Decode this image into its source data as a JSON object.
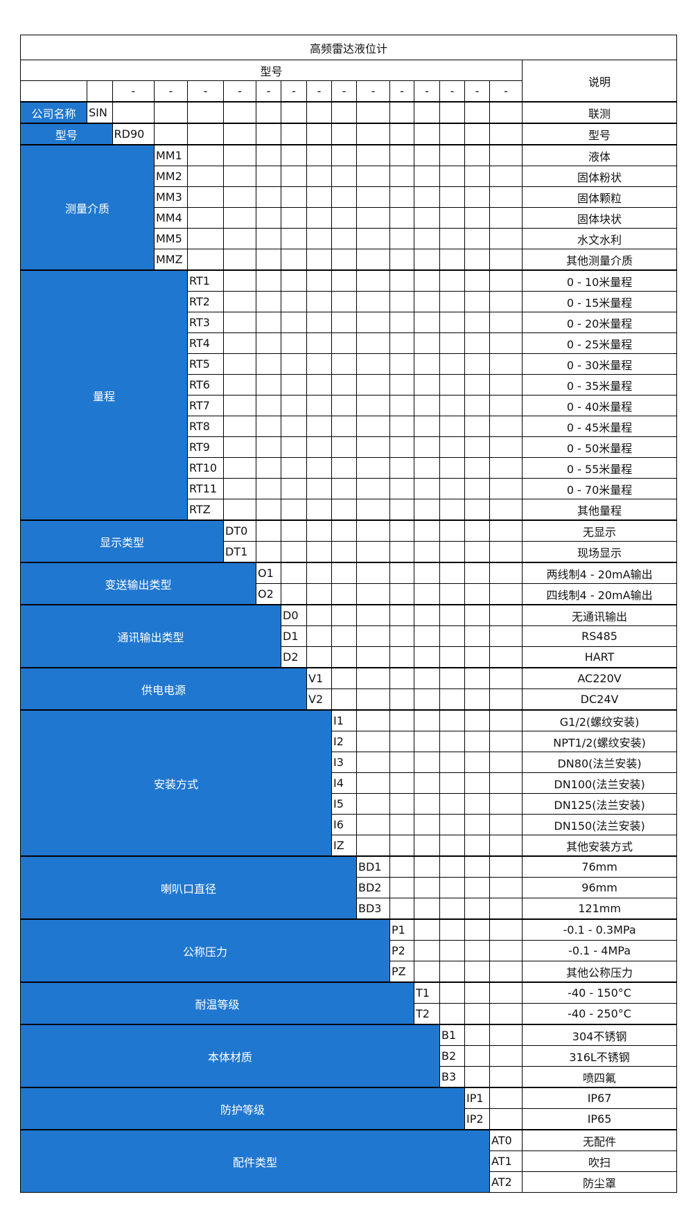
{
  "title": "高频雷达液位计",
  "header": {
    "model": "型号",
    "description": "说明",
    "separator": "-"
  },
  "accent_color": "#2077d0",
  "sections": [
    {
      "label": "公司名称",
      "items": [
        {
          "code": "SIN",
          "desc": "联测"
        }
      ]
    },
    {
      "label": "型号",
      "items": [
        {
          "code": "RD90",
          "desc": "型号"
        }
      ]
    },
    {
      "label": "测量介质",
      "items": [
        {
          "code": "MM1",
          "desc": "液体"
        },
        {
          "code": "MM2",
          "desc": "固体粉状"
        },
        {
          "code": "MM3",
          "desc": "固体颗粒"
        },
        {
          "code": "MM4",
          "desc": "固体块状"
        },
        {
          "code": "MM5",
          "desc": "水文水利"
        },
        {
          "code": "MMZ",
          "desc": "其他测量介质"
        }
      ]
    },
    {
      "label": "量程",
      "items": [
        {
          "code": "RT1",
          "desc": "0 - 10米量程"
        },
        {
          "code": "RT2",
          "desc": "0 - 15米量程"
        },
        {
          "code": "RT3",
          "desc": "0 - 20米量程"
        },
        {
          "code": "RT4",
          "desc": "0 - 25米量程"
        },
        {
          "code": "RT5",
          "desc": "0 - 30米量程"
        },
        {
          "code": "RT6",
          "desc": "0 - 35米量程"
        },
        {
          "code": "RT7",
          "desc": "0 - 40米量程"
        },
        {
          "code": "RT8",
          "desc": "0 - 45米量程"
        },
        {
          "code": "RT9",
          "desc": "0 - 50米量程"
        },
        {
          "code": "RT10",
          "desc": "0 - 55米量程"
        },
        {
          "code": "RT11",
          "desc": "0 - 70米量程"
        },
        {
          "code": "RTZ",
          "desc": "其他量程"
        }
      ]
    },
    {
      "label": "显示类型",
      "items": [
        {
          "code": "DT0",
          "desc": "无显示"
        },
        {
          "code": "DT1",
          "desc": "现场显示"
        }
      ]
    },
    {
      "label": "变送输出类型",
      "items": [
        {
          "code": "O1",
          "desc": "两线制4 - 20mA输出"
        },
        {
          "code": "O2",
          "desc": "四线制4 - 20mA输出"
        }
      ]
    },
    {
      "label": "通讯输出类型",
      "items": [
        {
          "code": "D0",
          "desc": "无通讯输出"
        },
        {
          "code": "D1",
          "desc": "RS485"
        },
        {
          "code": "D2",
          "desc": "HART"
        }
      ]
    },
    {
      "label": "供电电源",
      "items": [
        {
          "code": "V1",
          "desc": "AC220V"
        },
        {
          "code": "V2",
          "desc": "DC24V"
        }
      ]
    },
    {
      "label": "安装方式",
      "items": [
        {
          "code": "I1",
          "desc": "G1/2(螺纹安装)"
        },
        {
          "code": "I2",
          "desc": "NPT1/2(螺纹安装)"
        },
        {
          "code": "I3",
          "desc": "DN80(法兰安装)"
        },
        {
          "code": "I4",
          "desc": "DN100(法兰安装)"
        },
        {
          "code": "I5",
          "desc": "DN125(法兰安装)"
        },
        {
          "code": "I6",
          "desc": "DN150(法兰安装)"
        },
        {
          "code": "IZ",
          "desc": "其他安装方式"
        }
      ]
    },
    {
      "label": "喇叭口直径",
      "items": [
        {
          "code": "BD1",
          "desc": "76mm"
        },
        {
          "code": "BD2",
          "desc": "96mm"
        },
        {
          "code": "BD3",
          "desc": "121mm"
        }
      ]
    },
    {
      "label": "公称压力",
      "items": [
        {
          "code": "P1",
          "desc": "-0.1 - 0.3MPa"
        },
        {
          "code": "P2",
          "desc": "-0.1 - 4MPa"
        },
        {
          "code": "PZ",
          "desc": "其他公称压力"
        }
      ]
    },
    {
      "label": "耐温等级",
      "items": [
        {
          "code": "T1",
          "desc": "-40 - 150°C"
        },
        {
          "code": "T2",
          "desc": "-40 - 250°C"
        }
      ]
    },
    {
      "label": "本体材质",
      "items": [
        {
          "code": "B1",
          "desc": "304不锈钢"
        },
        {
          "code": "B2",
          "desc": "316L不锈钢"
        },
        {
          "code": "B3",
          "desc": "喷四氟"
        }
      ]
    },
    {
      "label": "防护等级",
      "items": [
        {
          "code": "IP1",
          "desc": "IP67"
        },
        {
          "code": "IP2",
          "desc": "IP65"
        }
      ]
    },
    {
      "label": "配件类型",
      "items": [
        {
          "code": "AT0",
          "desc": "无配件"
        },
        {
          "code": "AT1",
          "desc": "吹扫"
        },
        {
          "code": "AT2",
          "desc": "防尘罩"
        }
      ]
    }
  ]
}
